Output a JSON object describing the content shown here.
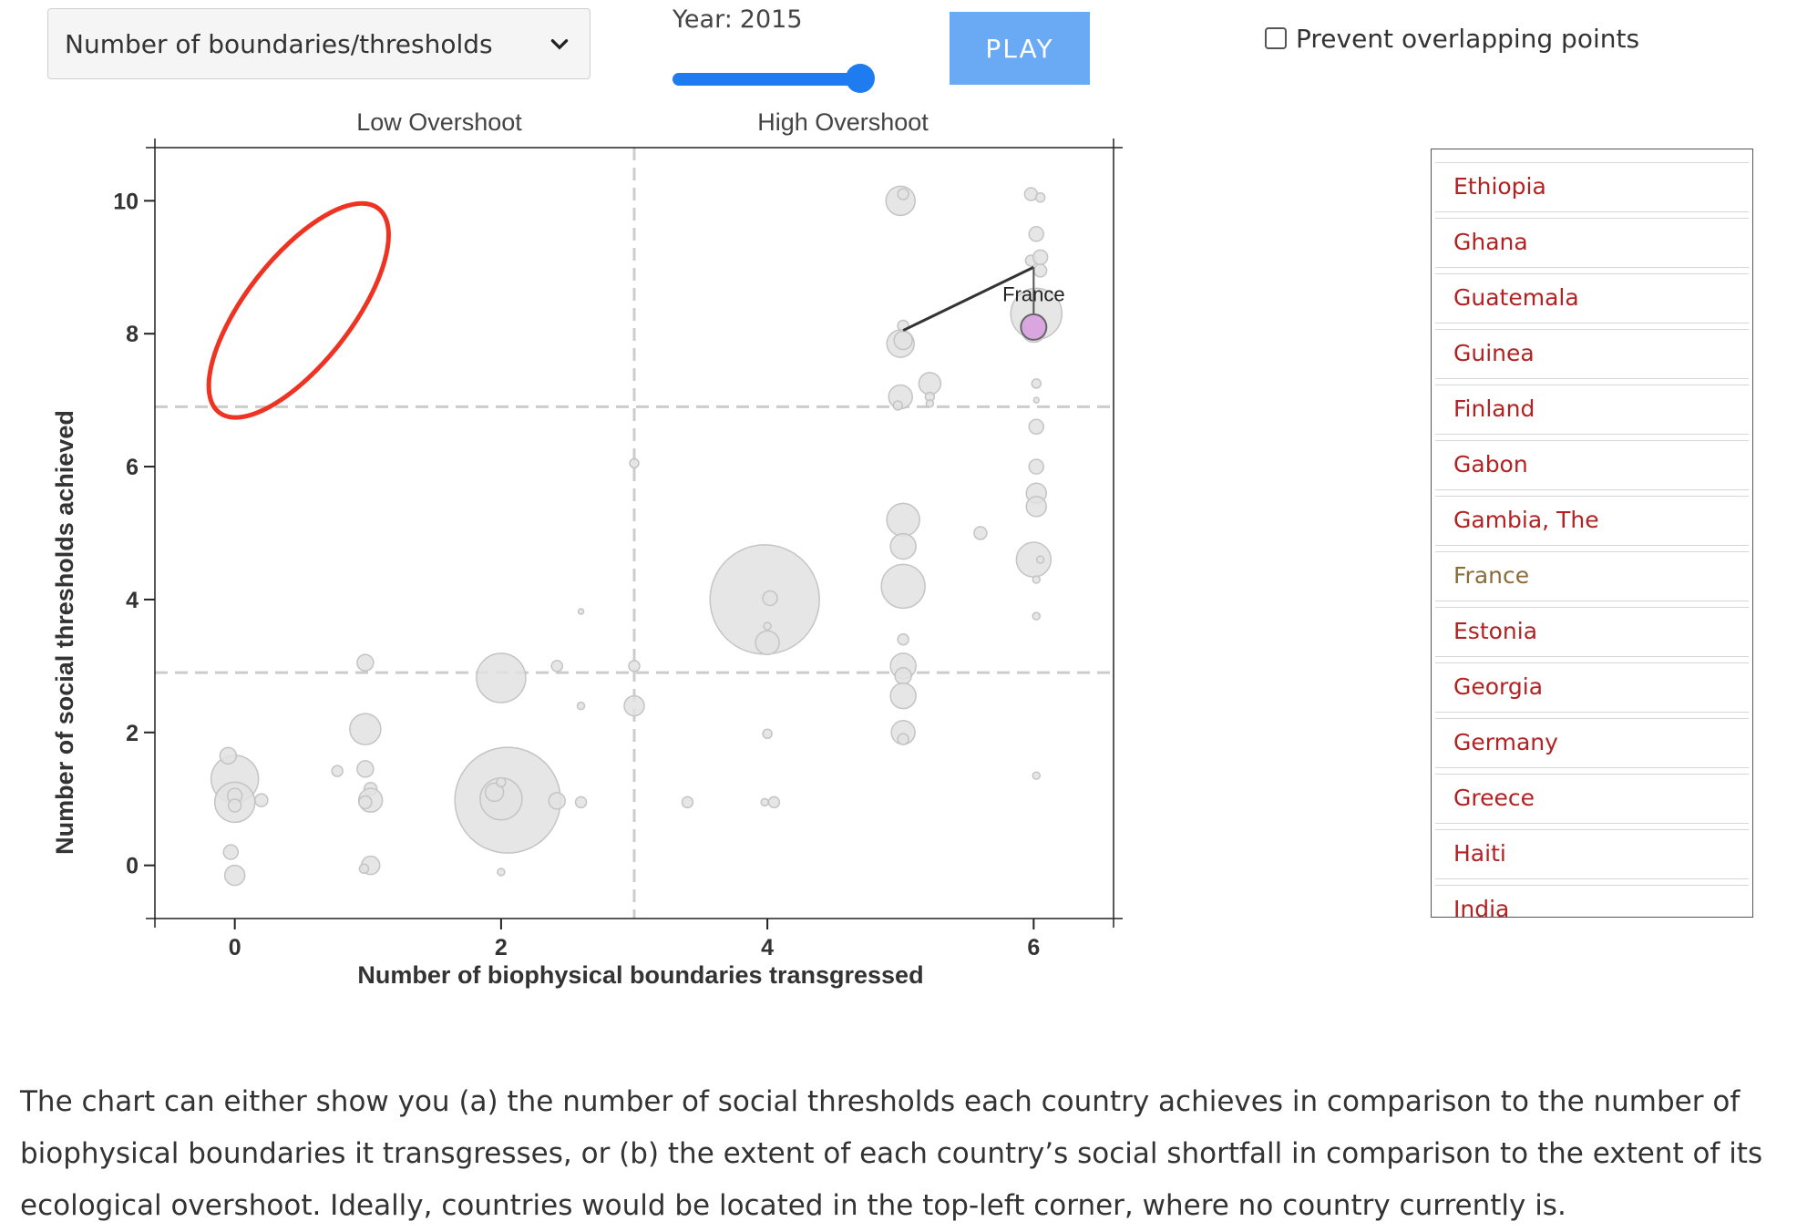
{
  "controls": {
    "metric_select": {
      "value": "Number of boundaries/thresholds",
      "icon": "chevron-down-icon"
    },
    "year": {
      "label": "Year:",
      "value": "2015",
      "slider_fraction": 1.0
    },
    "play_label": "PLAY",
    "overlap_checkbox": {
      "label": "Prevent overlapping points",
      "checked": false
    }
  },
  "chart_data": {
    "type": "scatter",
    "xlabel": "Number of biophysical boundaries transgressed",
    "ylabel": "Number of social thresholds achieved",
    "xlim": [
      -0.6,
      6.6
    ],
    "ylim": [
      -0.8,
      10.8
    ],
    "xticks": [
      0,
      2,
      4,
      6
    ],
    "yticks": [
      0,
      2,
      4,
      6,
      8,
      10
    ],
    "region_labels": [
      "Low Overshoot",
      "High Overshoot"
    ],
    "divider_x": 3,
    "divider_y": [
      2.9,
      6.9
    ],
    "highlight": {
      "name": "France",
      "from": [
        5.02,
        8.05
      ],
      "to": [
        6.0,
        9.0
      ],
      "point": [
        6.0,
        8.1
      ]
    },
    "annotation": {
      "shape": "ellipse",
      "color": "#ee3322",
      "center": [
        0.48,
        8.35
      ],
      "note": "top-left corner"
    },
    "points": [
      [
        0.0,
        1.3,
        26
      ],
      [
        0.0,
        0.95,
        22
      ],
      [
        -0.05,
        1.65,
        9
      ],
      [
        0.0,
        1.05,
        8
      ],
      [
        0.0,
        0.9,
        7
      ],
      [
        0.2,
        0.98,
        7
      ],
      [
        -0.03,
        0.2,
        8
      ],
      [
        0.0,
        -0.15,
        11
      ],
      [
        0.77,
        1.42,
        6
      ],
      [
        0.98,
        3.05,
        9
      ],
      [
        0.98,
        2.05,
        17
      ],
      [
        0.98,
        1.45,
        9
      ],
      [
        1.02,
        1.15,
        7
      ],
      [
        1.02,
        0.98,
        13
      ],
      [
        0.98,
        0.95,
        7
      ],
      [
        1.02,
        0.0,
        10
      ],
      [
        0.97,
        -0.05,
        5
      ],
      [
        2.0,
        2.82,
        27
      ],
      [
        2.05,
        0.98,
        58
      ],
      [
        2.0,
        1.0,
        23
      ],
      [
        1.95,
        1.1,
        10
      ],
      [
        2.0,
        1.25,
        5
      ],
      [
        2.42,
        3.0,
        6
      ],
      [
        2.6,
        3.82,
        3
      ],
      [
        2.6,
        2.4,
        4
      ],
      [
        2.6,
        0.95,
        6
      ],
      [
        2.42,
        0.97,
        9
      ],
      [
        2.0,
        -0.1,
        4
      ],
      [
        3.0,
        6.05,
        5
      ],
      [
        3.0,
        3.0,
        6
      ],
      [
        3.0,
        2.4,
        11
      ],
      [
        3.4,
        0.95,
        6
      ],
      [
        3.98,
        4.0,
        60
      ],
      [
        4.02,
        4.02,
        8
      ],
      [
        4.0,
        3.35,
        13
      ],
      [
        4.0,
        3.6,
        4
      ],
      [
        4.0,
        1.98,
        5
      ],
      [
        3.98,
        0.95,
        4
      ],
      [
        4.05,
        0.95,
        6
      ],
      [
        5.0,
        10.0,
        16
      ],
      [
        5.02,
        10.1,
        6
      ],
      [
        5.02,
        8.12,
        6
      ],
      [
        5.0,
        7.85,
        15
      ],
      [
        5.02,
        7.9,
        10
      ],
      [
        5.22,
        7.25,
        12
      ],
      [
        5.22,
        7.05,
        5
      ],
      [
        5.22,
        6.95,
        4
      ],
      [
        5.0,
        7.05,
        13
      ],
      [
        4.98,
        6.92,
        5
      ],
      [
        5.02,
        5.2,
        18
      ],
      [
        5.02,
        4.8,
        14
      ],
      [
        5.02,
        4.2,
        24
      ],
      [
        5.02,
        3.4,
        6
      ],
      [
        5.02,
        3.0,
        14
      ],
      [
        5.02,
        2.85,
        9
      ],
      [
        5.02,
        2.55,
        14
      ],
      [
        5.02,
        2.0,
        13
      ],
      [
        5.02,
        1.9,
        6
      ],
      [
        5.6,
        5.0,
        7
      ],
      [
        5.98,
        10.1,
        7
      ],
      [
        6.05,
        10.05,
        5
      ],
      [
        6.02,
        9.5,
        8
      ],
      [
        5.98,
        9.1,
        6
      ],
      [
        6.05,
        9.15,
        8
      ],
      [
        6.05,
        8.95,
        7
      ],
      [
        6.02,
        8.3,
        28
      ],
      [
        6.0,
        8.05,
        13
      ],
      [
        6.02,
        7.25,
        5
      ],
      [
        6.02,
        7.0,
        3
      ],
      [
        6.02,
        6.6,
        8
      ],
      [
        6.02,
        6.0,
        8
      ],
      [
        6.02,
        5.6,
        11
      ],
      [
        6.02,
        5.4,
        11
      ],
      [
        6.0,
        4.6,
        19
      ],
      [
        6.05,
        4.6,
        4
      ],
      [
        6.02,
        4.3,
        4
      ],
      [
        6.02,
        3.75,
        4
      ],
      [
        6.02,
        1.35,
        4
      ]
    ]
  },
  "country_list": [
    {
      "name": "Ethiopia",
      "selected": false
    },
    {
      "name": "Ghana",
      "selected": false
    },
    {
      "name": "Guatemala",
      "selected": false
    },
    {
      "name": "Guinea",
      "selected": false
    },
    {
      "name": "Finland",
      "selected": false
    },
    {
      "name": "Gabon",
      "selected": false
    },
    {
      "name": "Gambia, The",
      "selected": false
    },
    {
      "name": "France",
      "selected": true
    },
    {
      "name": "Estonia",
      "selected": false
    },
    {
      "name": "Georgia",
      "selected": false
    },
    {
      "name": "Germany",
      "selected": false
    },
    {
      "name": "Greece",
      "selected": false
    },
    {
      "name": "Haiti",
      "selected": false
    },
    {
      "name": "India",
      "selected": false
    }
  ],
  "description": "The chart can either show you (a) the number of social thresholds each country achieves in comparison to the number of biophysical boundaries it transgresses, or (b) the extent of each country’s social shortfall in comparison to the extent of its ecological overshoot. Ideally, countries would be located in the top-left corner, where no country currently is.",
  "colors": {
    "accent": "#1f7bf0",
    "play_button": "#6aaaf5",
    "country_link": "#b22222",
    "country_selected": "#8a6d3b",
    "highlight_point": "#d9a6e0",
    "annotation": "#ee3322"
  }
}
